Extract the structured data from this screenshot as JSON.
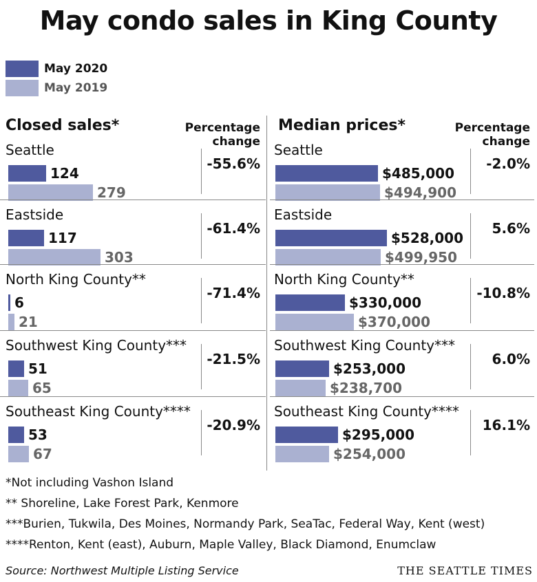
{
  "colors": {
    "current": "#4f5a9e",
    "prior": "#aab1d1"
  },
  "title": "May condo sales in King County",
  "legend": [
    {
      "label": "May 2020",
      "series": "current"
    },
    {
      "label": "May 2019",
      "series": "prior"
    }
  ],
  "chart_data": [
    {
      "type": "bar",
      "title": "Closed sales*",
      "pct_header": [
        "Percentage",
        "change"
      ],
      "categories": [
        "Seattle",
        "Eastside",
        "North King County**",
        "Southwest King County***",
        "Southeast King County****"
      ],
      "series": [
        {
          "name": "May 2020",
          "values": [
            124,
            117,
            6,
            51,
            53
          ],
          "labels": [
            "124",
            "117",
            "6",
            "51",
            "53"
          ]
        },
        {
          "name": "May 2019",
          "values": [
            279,
            303,
            21,
            65,
            67
          ],
          "labels": [
            "279",
            "303",
            "21",
            "65",
            "67"
          ]
        }
      ],
      "pct_change": [
        "-55.6%",
        "-61.4%",
        "-71.4%",
        "-21.5%",
        "-20.9%"
      ],
      "xlim": [
        0,
        303
      ]
    },
    {
      "type": "bar",
      "title": "Median prices*",
      "pct_header": [
        "Percentage",
        "change"
      ],
      "categories": [
        "Seattle",
        "Eastside",
        "North King County**",
        "Southwest King County***",
        "Southeast King County****"
      ],
      "series": [
        {
          "name": "May 2020",
          "values": [
            485000,
            528000,
            330000,
            253000,
            295000
          ],
          "labels": [
            "$485,000",
            "$528,000",
            "$330,000",
            "$253,000",
            "$295,000"
          ]
        },
        {
          "name": "May 2019",
          "values": [
            494900,
            499950,
            370000,
            238700,
            254000
          ],
          "labels": [
            "$494,900",
            "$499,950",
            "$370,000",
            "$238,700",
            "$254,000"
          ]
        }
      ],
      "pct_change": [
        "-2.0%",
        "5.6%",
        "-10.8%",
        "6.0%",
        "16.1%"
      ],
      "xlim": [
        0,
        528000
      ]
    }
  ],
  "notes": [
    "*Not including Vashon Island",
    "** Shoreline, Lake Forest Park, Kenmore",
    "***Burien, Tukwila, Des Moines, Normandy Park, SeaTac, Federal Way, Kent (west)",
    "****Renton, Kent (east), Auburn, Maple Valley, Black Diamond, Enumclaw"
  ],
  "source": "Source: Northwest Multiple Listing Service",
  "brand": "THE SEATTLE TIMES"
}
